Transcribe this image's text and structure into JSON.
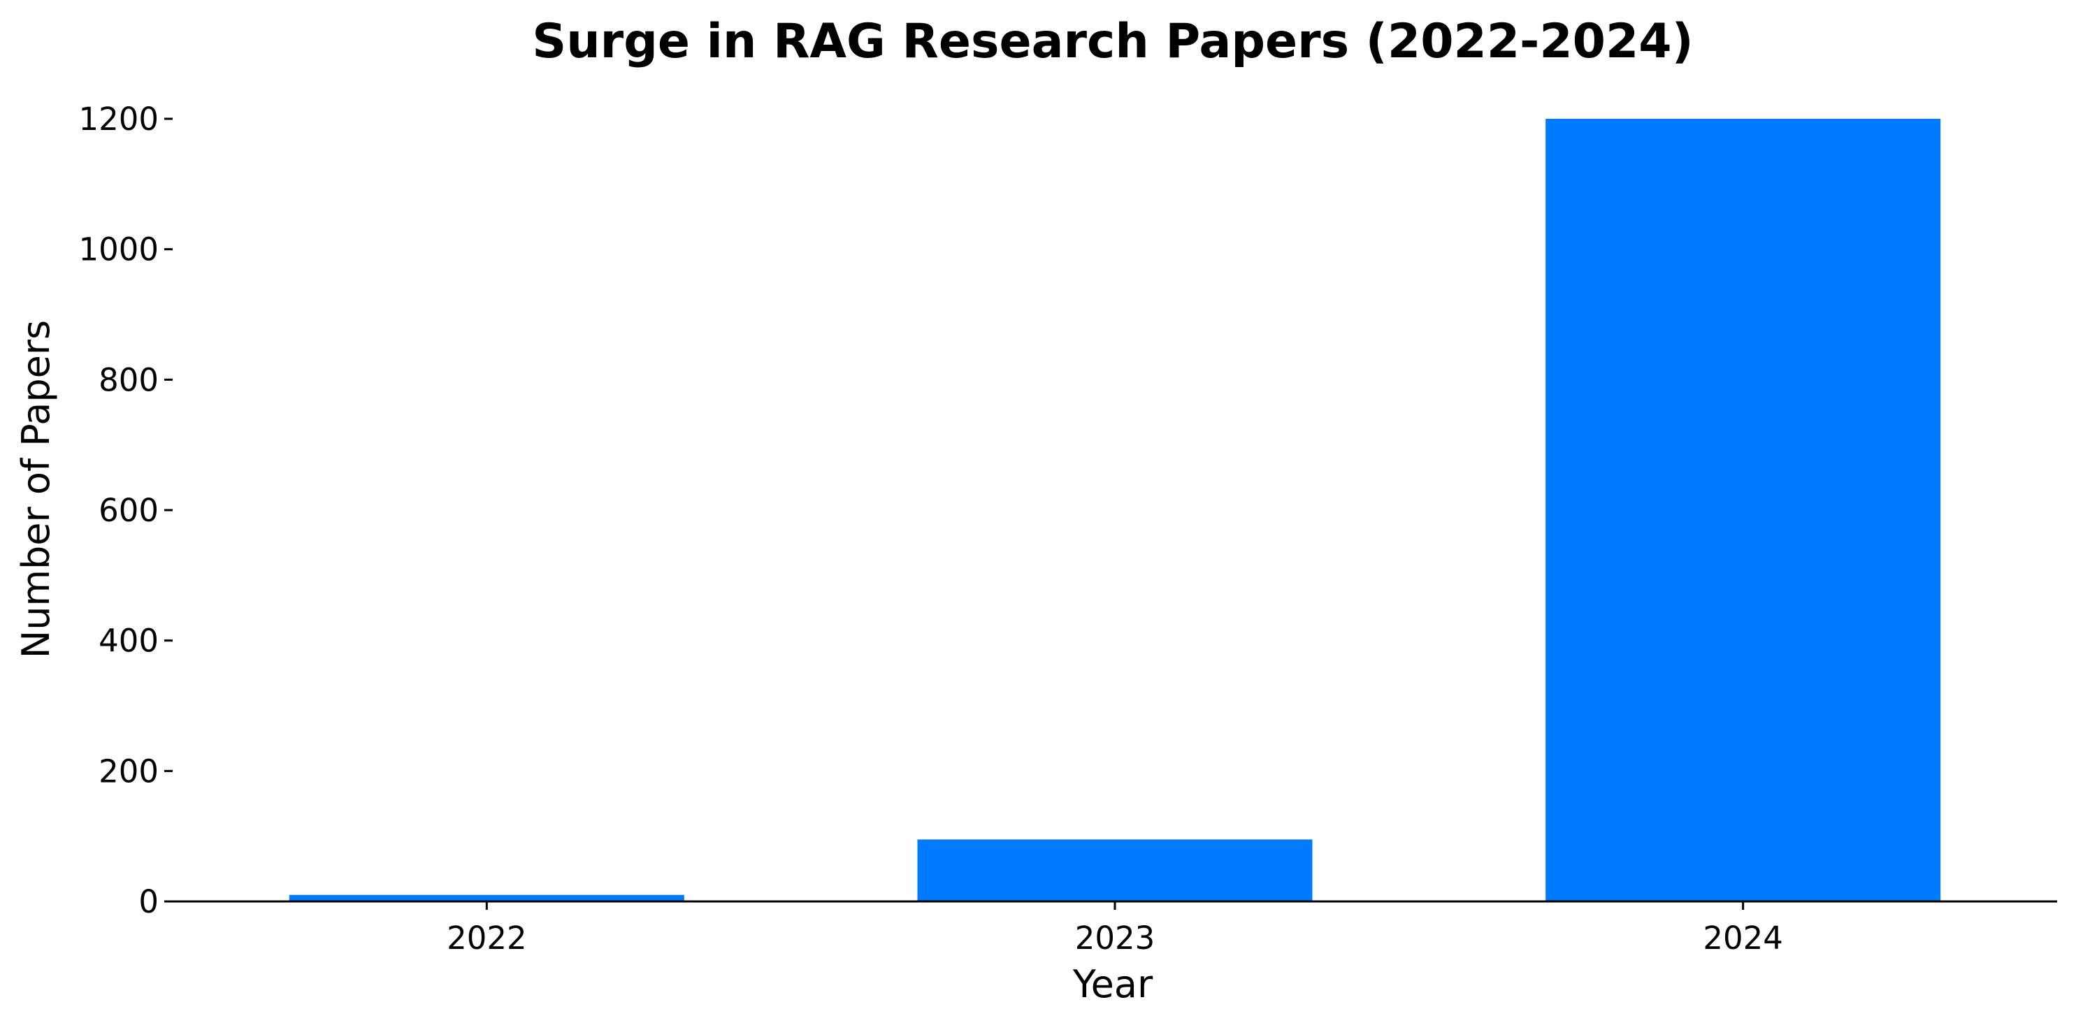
{
  "chart_data": {
    "type": "bar",
    "title": "Surge in RAG Research Papers (2022-2024)",
    "xlabel": "Year",
    "ylabel": "Number of Papers",
    "categories": [
      "2022",
      "2023",
      "2024"
    ],
    "values": [
      10,
      95,
      1200
    ],
    "ylim": [
      0,
      1200
    ],
    "yticks": [
      0,
      200,
      400,
      600,
      800,
      1000,
      1200
    ],
    "grid": false,
    "legend": "none",
    "bar_color": "#007AFF",
    "axis_color": "#000000"
  }
}
